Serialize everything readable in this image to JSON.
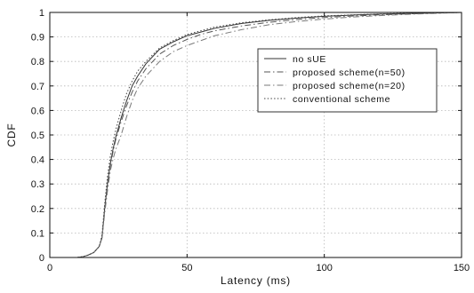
{
  "chart_data": {
    "type": "line",
    "title": "",
    "xlabel": "Latency (ms)",
    "ylabel": "CDF",
    "xlim": [
      0,
      150
    ],
    "ylim": [
      0,
      1
    ],
    "x_ticks": [
      0,
      50,
      100,
      150
    ],
    "y_ticks": [
      0,
      0.1,
      0.2,
      0.3,
      0.4,
      0.5,
      0.6,
      0.7,
      0.8,
      0.9,
      1
    ],
    "grid": true,
    "legend_position": "upper-right",
    "series": [
      {
        "name": "no sUE",
        "color": "#333333",
        "dash": "solid",
        "points": [
          [
            10,
            0
          ],
          [
            12,
            0.003
          ],
          [
            14,
            0.01
          ],
          [
            16,
            0.02
          ],
          [
            18,
            0.045
          ],
          [
            19,
            0.08
          ],
          [
            20,
            0.2
          ],
          [
            21,
            0.3
          ],
          [
            22,
            0.38
          ],
          [
            23,
            0.44
          ],
          [
            24,
            0.49
          ],
          [
            26,
            0.57
          ],
          [
            28,
            0.64
          ],
          [
            30,
            0.7
          ],
          [
            32,
            0.74
          ],
          [
            35,
            0.79
          ],
          [
            40,
            0.85
          ],
          [
            45,
            0.88
          ],
          [
            50,
            0.905
          ],
          [
            55,
            0.92
          ],
          [
            60,
            0.935
          ],
          [
            70,
            0.955
          ],
          [
            80,
            0.968
          ],
          [
            90,
            0.977
          ],
          [
            100,
            0.984
          ],
          [
            110,
            0.989
          ],
          [
            120,
            0.993
          ],
          [
            130,
            0.996
          ],
          [
            140,
            0.998
          ],
          [
            150,
            1
          ]
        ]
      },
      {
        "name": "proposed scheme(n=50)",
        "color": "#555555",
        "dash": "dashdot",
        "points": [
          [
            10,
            0
          ],
          [
            12,
            0.003
          ],
          [
            14,
            0.01
          ],
          [
            16,
            0.02
          ],
          [
            18,
            0.045
          ],
          [
            19,
            0.08
          ],
          [
            20,
            0.19
          ],
          [
            21,
            0.29
          ],
          [
            22,
            0.37
          ],
          [
            23,
            0.43
          ],
          [
            24,
            0.48
          ],
          [
            26,
            0.555
          ],
          [
            28,
            0.62
          ],
          [
            30,
            0.675
          ],
          [
            32,
            0.72
          ],
          [
            35,
            0.77
          ],
          [
            40,
            0.83
          ],
          [
            45,
            0.865
          ],
          [
            50,
            0.89
          ],
          [
            55,
            0.91
          ],
          [
            60,
            0.925
          ],
          [
            70,
            0.945
          ],
          [
            80,
            0.96
          ],
          [
            90,
            0.971
          ],
          [
            100,
            0.979
          ],
          [
            110,
            0.985
          ],
          [
            120,
            0.99
          ],
          [
            130,
            0.994
          ],
          [
            140,
            0.997
          ],
          [
            150,
            1
          ]
        ]
      },
      {
        "name": "proposed scheme(n=20)",
        "color": "#7a7a7a",
        "dash": "dashdot",
        "points": [
          [
            10,
            0
          ],
          [
            12,
            0.003
          ],
          [
            14,
            0.01
          ],
          [
            16,
            0.02
          ],
          [
            18,
            0.045
          ],
          [
            19,
            0.08
          ],
          [
            20,
            0.18
          ],
          [
            21,
            0.27
          ],
          [
            22,
            0.35
          ],
          [
            23,
            0.4
          ],
          [
            24,
            0.44
          ],
          [
            26,
            0.5
          ],
          [
            28,
            0.575
          ],
          [
            30,
            0.64
          ],
          [
            32,
            0.69
          ],
          [
            35,
            0.74
          ],
          [
            40,
            0.8
          ],
          [
            45,
            0.84
          ],
          [
            50,
            0.865
          ],
          [
            55,
            0.885
          ],
          [
            60,
            0.905
          ],
          [
            70,
            0.93
          ],
          [
            80,
            0.95
          ],
          [
            90,
            0.963
          ],
          [
            100,
            0.973
          ],
          [
            110,
            0.981
          ],
          [
            120,
            0.987
          ],
          [
            130,
            0.992
          ],
          [
            140,
            0.996
          ],
          [
            150,
            1
          ]
        ]
      },
      {
        "name": "conventional scheme",
        "color": "#444444",
        "dash": "dotted",
        "points": [
          [
            10,
            0
          ],
          [
            12,
            0.003
          ],
          [
            14,
            0.01
          ],
          [
            16,
            0.02
          ],
          [
            18,
            0.045
          ],
          [
            19,
            0.09
          ],
          [
            20,
            0.22
          ],
          [
            21,
            0.33
          ],
          [
            22,
            0.41
          ],
          [
            23,
            0.47
          ],
          [
            24,
            0.52
          ],
          [
            26,
            0.6
          ],
          [
            28,
            0.67
          ],
          [
            30,
            0.72
          ],
          [
            32,
            0.76
          ],
          [
            35,
            0.8
          ],
          [
            40,
            0.855
          ],
          [
            45,
            0.885
          ],
          [
            50,
            0.91
          ],
          [
            55,
            0.925
          ],
          [
            60,
            0.94
          ],
          [
            70,
            0.958
          ],
          [
            80,
            0.97
          ],
          [
            90,
            0.979
          ],
          [
            100,
            0.986
          ],
          [
            110,
            0.99
          ],
          [
            120,
            0.994
          ],
          [
            130,
            0.997
          ],
          [
            140,
            0.998
          ],
          [
            150,
            1
          ]
        ]
      }
    ]
  }
}
